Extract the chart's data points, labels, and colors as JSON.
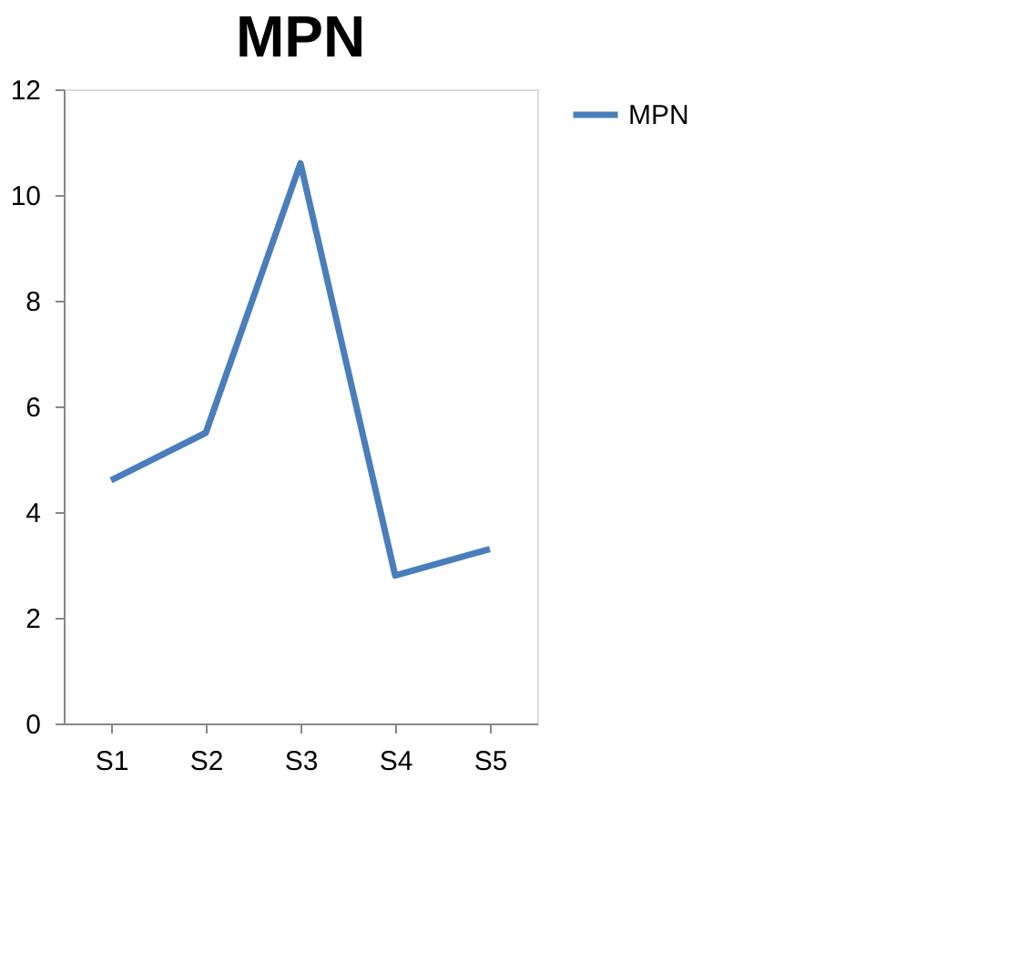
{
  "chart_data": {
    "type": "line",
    "title": "MPN",
    "categories": [
      "S1",
      "S2",
      "S3",
      "S4",
      "S5"
    ],
    "series": [
      {
        "name": "MPN",
        "color": "#4a7ebb",
        "values": [
          4.6,
          5.5,
          10.6,
          2.8,
          3.3
        ]
      }
    ],
    "ylim": [
      0,
      12
    ],
    "yticks": [
      0,
      2,
      4,
      6,
      8,
      10,
      12
    ],
    "grid": false,
    "legend": "right",
    "marker": "none",
    "line_style": "solid"
  }
}
